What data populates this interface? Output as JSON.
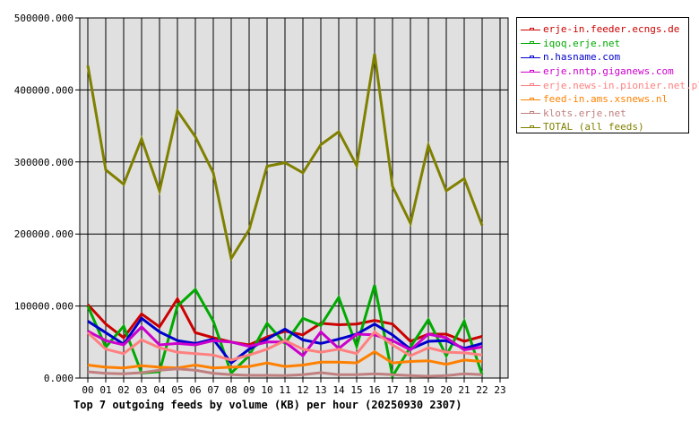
{
  "chart_data": {
    "type": "line",
    "title": "Top 7 outgoing feeds by volume (KB) per hour (20250930 2307)",
    "xlabel": "",
    "ylabel": "",
    "ylim": [
      0,
      500000
    ],
    "yticks": [
      "0.000",
      "100000.000",
      "200000.000",
      "300000.000",
      "400000.000",
      "500000.000"
    ],
    "grid": true,
    "legend_position": "right",
    "categories": [
      "00",
      "01",
      "02",
      "03",
      "04",
      "05",
      "06",
      "07",
      "08",
      "09",
      "10",
      "11",
      "12",
      "13",
      "14",
      "15",
      "16",
      "17",
      "18",
      "19",
      "20",
      "21",
      "22",
      "23"
    ],
    "series": [
      {
        "name": "erje-in.feeder.ecngs.de",
        "color": "#cc0000",
        "values": [
          102000,
          75000,
          56000,
          89000,
          71000,
          110000,
          63000,
          56000,
          50000,
          46000,
          57000,
          65000,
          60000,
          76000,
          74000,
          75000,
          80000,
          75000,
          51000,
          61000,
          61000,
          51000,
          58000
        ]
      },
      {
        "name": "iqoq.erje.net",
        "color": "#00aa00",
        "values": [
          100000,
          43000,
          72000,
          7000,
          9000,
          100000,
          123000,
          79000,
          7000,
          31000,
          76000,
          48000,
          83000,
          73000,
          112000,
          44000,
          129000,
          2500,
          43000,
          81000,
          31000,
          79000,
          4600
        ]
      },
      {
        "name": "n.hasname.com",
        "color": "#0000cc",
        "values": [
          79000,
          63000,
          47000,
          83000,
          64000,
          52000,
          48000,
          54000,
          21000,
          40000,
          54000,
          68000,
          53000,
          48000,
          54000,
          61000,
          75000,
          60000,
          40000,
          51000,
          52000,
          41000,
          48000
        ]
      },
      {
        "name": "erje.nntp.giganews.com",
        "color": "#cc00cc",
        "values": [
          65000,
          52000,
          46000,
          71000,
          46000,
          48000,
          46000,
          52000,
          50000,
          44000,
          50000,
          50000,
          31000,
          64000,
          41000,
          61000,
          60000,
          52000,
          39000,
          61000,
          56000,
          39000,
          43000
        ]
      },
      {
        "name": "erje.news-in.pionier.net.pl",
        "color": "#ff8080",
        "values": [
          63000,
          40000,
          34000,
          53000,
          42000,
          36000,
          34000,
          32000,
          25000,
          32000,
          40000,
          52000,
          40000,
          36000,
          40000,
          34000,
          64000,
          46000,
          31000,
          42000,
          36000,
          35000,
          32000
        ]
      },
      {
        "name": "feed-in.ams.xsnews.nl",
        "color": "#ff8000",
        "values": [
          18000,
          15000,
          14000,
          17000,
          15000,
          14000,
          18000,
          14000,
          15000,
          16000,
          21000,
          16000,
          18000,
          22000,
          22000,
          21000,
          36500,
          21000,
          23000,
          24000,
          19000,
          25000,
          23000
        ]
      },
      {
        "name": "klots.erje.net",
        "color": "#c08080",
        "values": [
          8700,
          6600,
          5800,
          7500,
          10800,
          12800,
          10800,
          6600,
          4600,
          3700,
          3700,
          3300,
          4600,
          7500,
          4600,
          4600,
          5800,
          4600,
          3300,
          2500,
          3300,
          5800,
          4600
        ]
      },
      {
        "name": "TOTAL (all feeds)",
        "color": "#808000",
        "values": [
          434000,
          289000,
          269000,
          332000,
          260000,
          371000,
          335000,
          285000,
          166000,
          206000,
          294000,
          299000,
          285000,
          324000,
          342000,
          295000,
          450000,
          266000,
          215000,
          323000,
          260000,
          277000,
          212000
        ]
      }
    ]
  },
  "caption": "Top 7 outgoing feeds by volume (KB) per hour (20250930 2307)",
  "style": {
    "plot_bg": "#e0e0e0",
    "grid_color": "#000000"
  }
}
